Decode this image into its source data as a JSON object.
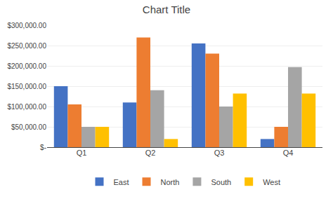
{
  "chart_data": {
    "type": "bar",
    "title": "Chart Title",
    "categories": [
      "Q1",
      "Q2",
      "Q3",
      "Q4"
    ],
    "series": [
      {
        "name": "East",
        "color": "#4472C4",
        "values": [
          150000,
          110000,
          255000,
          20000
        ]
      },
      {
        "name": "North",
        "color": "#ED7D31",
        "values": [
          105000,
          270000,
          230000,
          50000
        ]
      },
      {
        "name": "South",
        "color": "#A5A5A5",
        "values": [
          50000,
          140000,
          100000,
          197000
        ]
      },
      {
        "name": "West",
        "color": "#FFC000",
        "values": [
          50000,
          20000,
          132000,
          132000
        ]
      }
    ],
    "ylim": [
      0,
      300000
    ],
    "yticks": [
      {
        "value": 0,
        "label": "$-"
      },
      {
        "value": 50000,
        "label": "$50,000.00"
      },
      {
        "value": 100000,
        "label": "$100,000.00"
      },
      {
        "value": 150000,
        "label": "$150,000.00"
      },
      {
        "value": 200000,
        "label": "$200,000.00"
      },
      {
        "value": 250000,
        "label": "$250,000.00"
      },
      {
        "value": 300000,
        "label": "$300,000.00"
      }
    ],
    "grid": true,
    "legend": "bottom"
  }
}
